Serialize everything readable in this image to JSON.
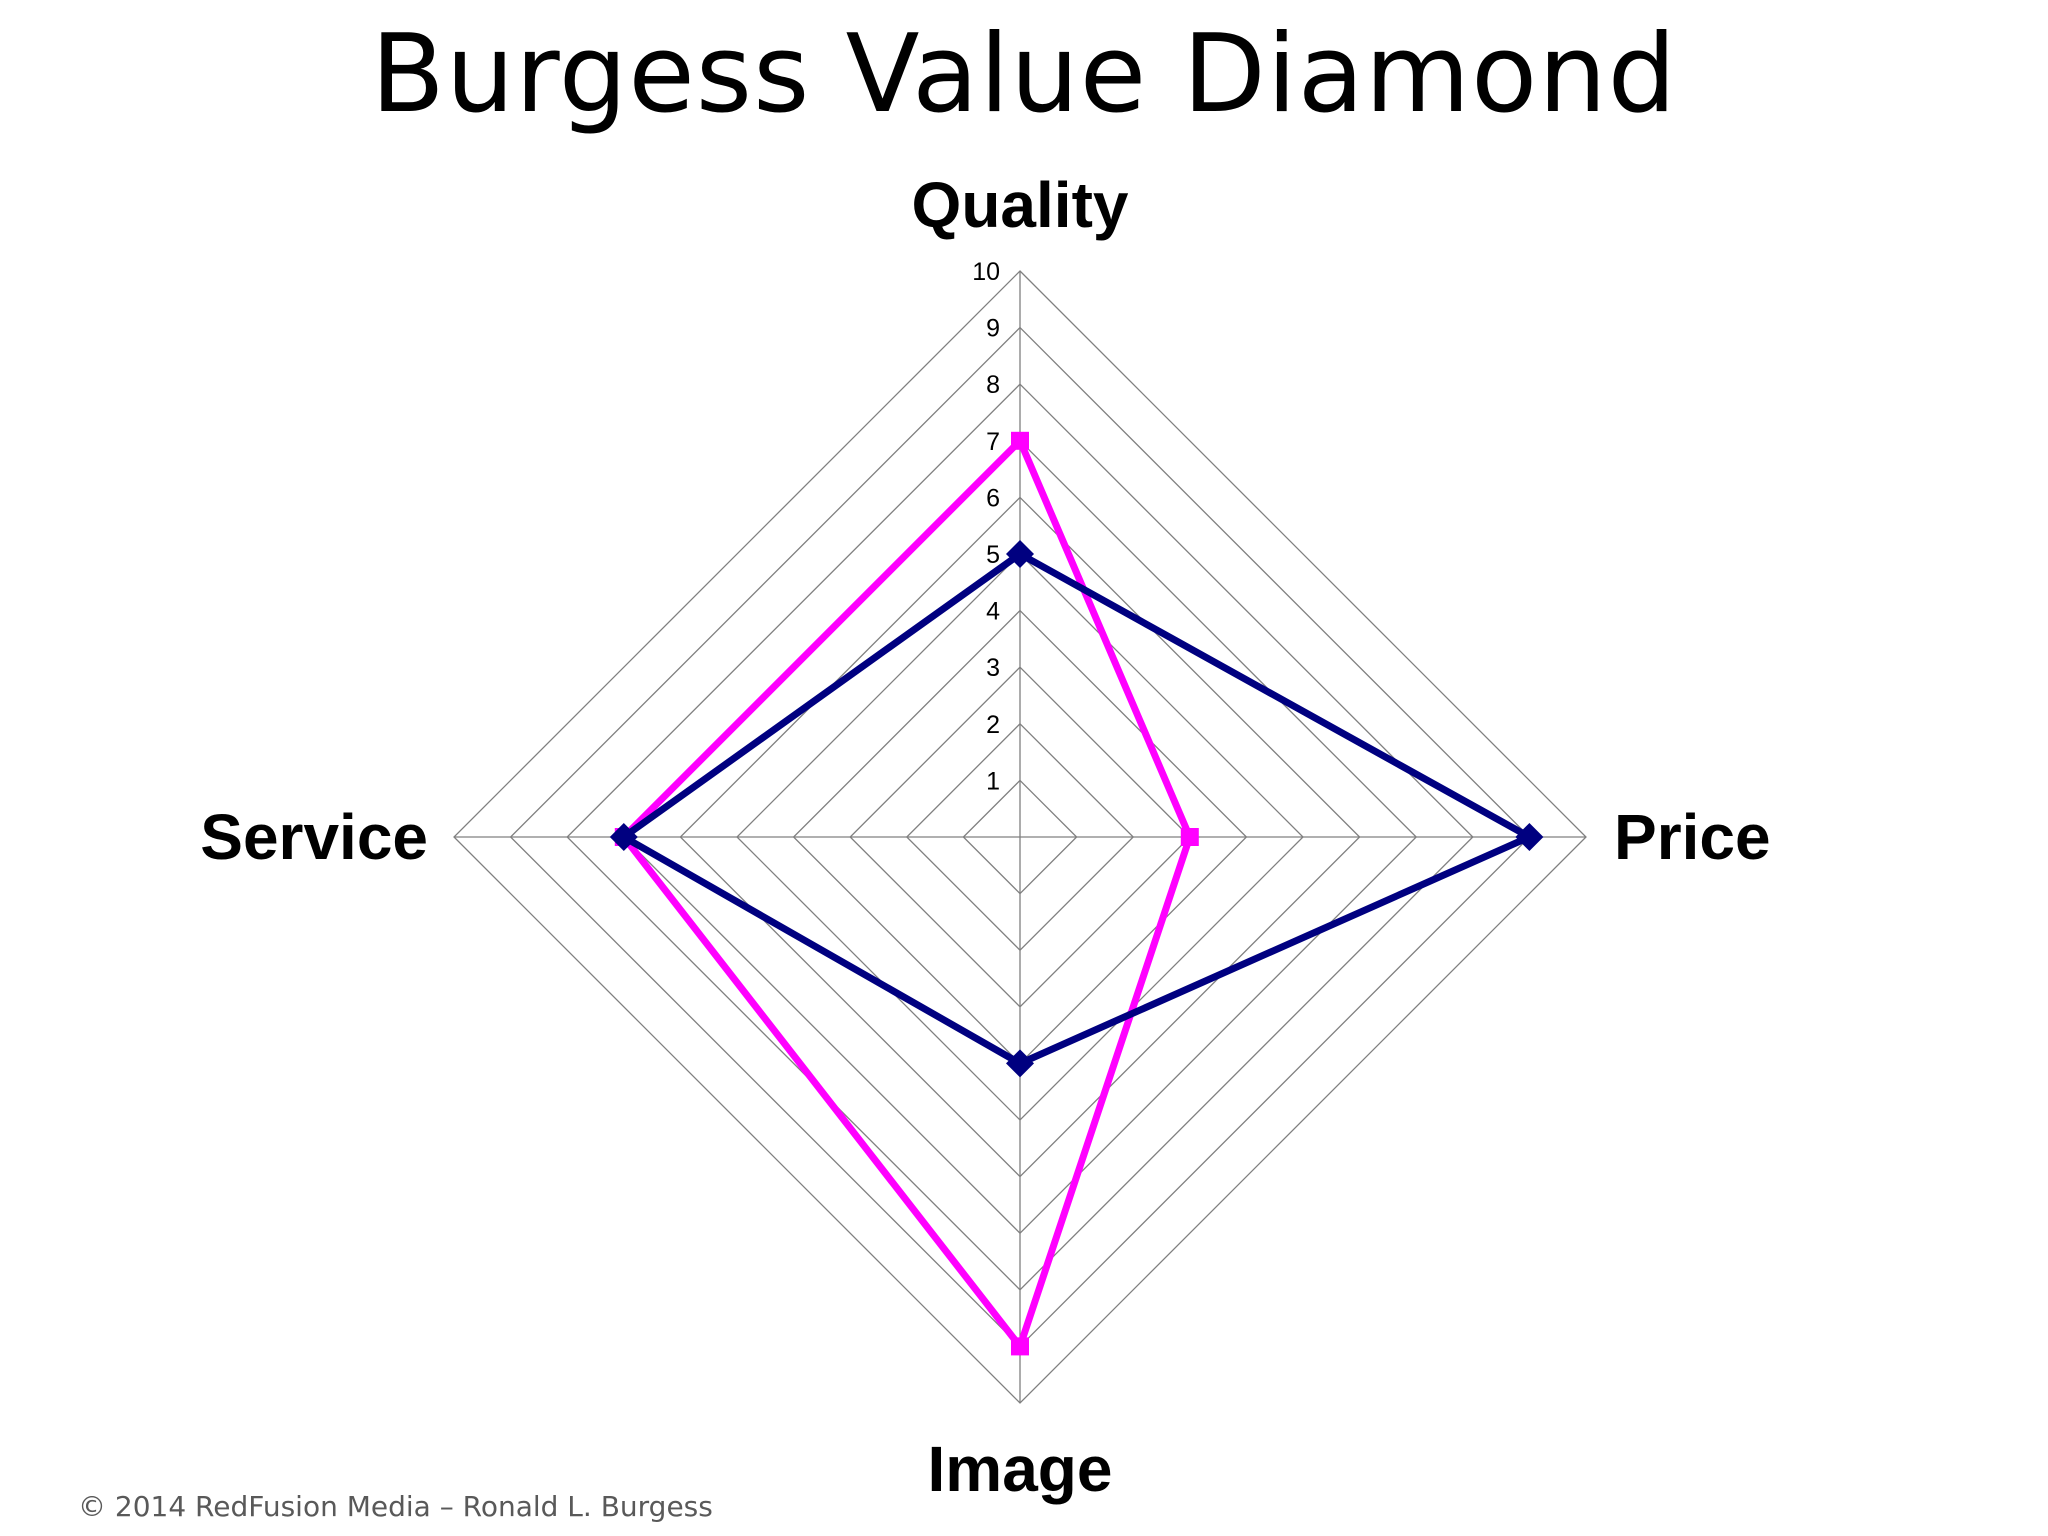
{
  "page": {
    "title": "Burgess Value Diamond",
    "footer": "© 2014 RedFusion Media – Ronald L.  Burgess"
  },
  "chart_data": {
    "type": "radar",
    "title": "Burgess Value Diamond",
    "axes": [
      "Quality",
      "Price",
      "Image",
      "Service"
    ],
    "scale": {
      "min": 0,
      "max": 10,
      "ticks": [
        1,
        2,
        3,
        4,
        5,
        6,
        7,
        8,
        9,
        10
      ]
    },
    "grid": true,
    "series": [
      {
        "values": [
          5,
          9,
          4,
          7
        ],
        "color": "#000080",
        "marker": "diamond"
      },
      {
        "values": [
          7,
          3,
          9,
          7
        ],
        "color": "#ff00ff",
        "marker": "square"
      }
    ]
  }
}
